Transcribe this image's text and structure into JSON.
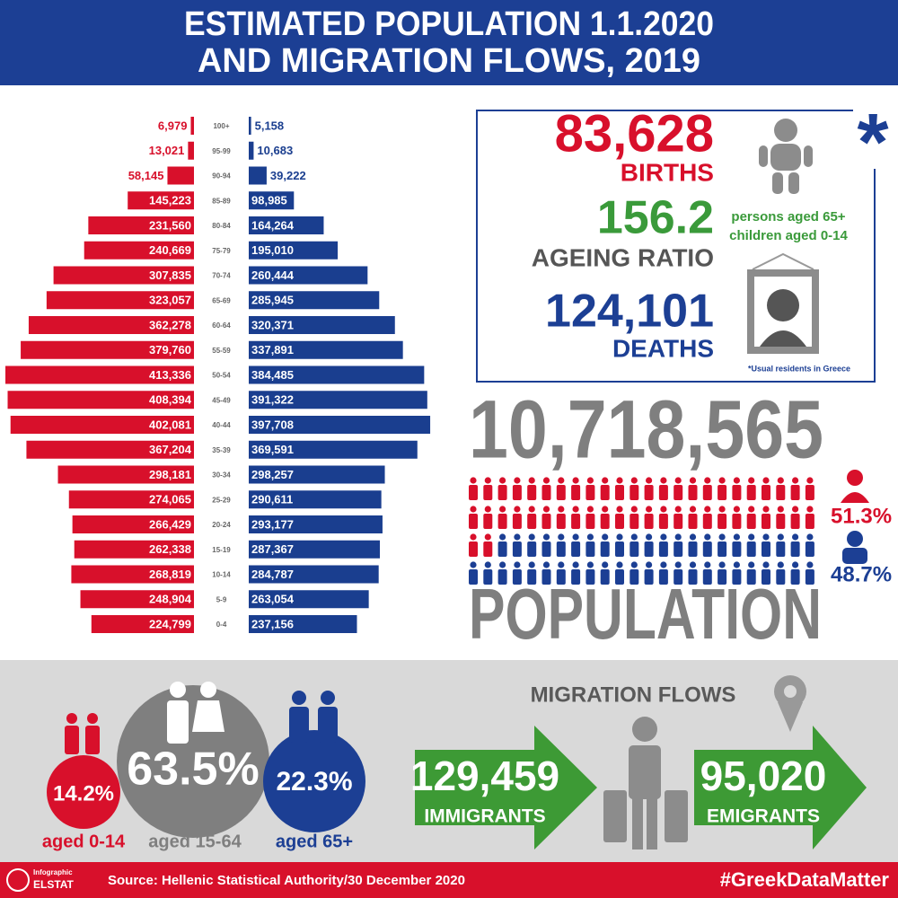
{
  "header": {
    "title_line1": "ESTIMATED POPULATION 1.1.2020",
    "title_line2": "AND MIGRATION FLOWS, 2019"
  },
  "chart_data": {
    "type": "pyramid",
    "categories": [
      "100+",
      "95-99",
      "90-94",
      "85-89",
      "80-84",
      "75-79",
      "70-74",
      "65-69",
      "60-64",
      "55-59",
      "50-54",
      "45-49",
      "40-44",
      "35-39",
      "30-34",
      "25-29",
      "20-24",
      "15-19",
      "10-14",
      "5-9",
      "0-4"
    ],
    "series": [
      {
        "color": "#d8102b",
        "side": "left",
        "values": [
          6979,
          13021,
          58145,
          145223,
          231560,
          240669,
          307835,
          323057,
          362278,
          379760,
          413336,
          408394,
          402081,
          367204,
          298181,
          274065,
          266429,
          262338,
          268819,
          248904,
          224799
        ],
        "value_labels": [
          "6,979",
          "13,021",
          "58,145",
          "145,223",
          "231,560",
          "240,669",
          "307,835",
          "323,057",
          "362,278",
          "379,760",
          "413,336",
          "408,394",
          "402,081",
          "367,204",
          "298,181",
          "274,065",
          "266,429",
          "262,338",
          "268,819",
          "248,904",
          "224,799"
        ]
      },
      {
        "color": "#1a3e8f",
        "side": "right",
        "values": [
          5158,
          10683,
          39222,
          98985,
          164264,
          195010,
          260444,
          285945,
          320371,
          337891,
          384485,
          391322,
          397708,
          369591,
          298257,
          290611,
          293177,
          287367,
          284787,
          263054,
          237156
        ],
        "value_labels": [
          "5,158",
          "10,683",
          "39,222",
          "98,985",
          "164,264",
          "195,010",
          "260,444",
          "285,945",
          "320,371",
          "337,891",
          "384,485",
          "391,322",
          "397,708",
          "369,591",
          "298,257",
          "290,611",
          "293,177",
          "287,367",
          "284,787",
          "263,054",
          "237,156"
        ]
      }
    ]
  },
  "stats": {
    "asterisk": "*",
    "births": "83,628",
    "births_label": "BIRTHS",
    "ageing_ratio": "156.2",
    "ageing_ratio_label": "AGEING RATIO",
    "ratio_numerator": "persons aged 65+",
    "ratio_denominator": "children aged 0-14",
    "deaths": "124,101",
    "deaths_label": "DEATHS",
    "footnote": "*Usual residents in Greece"
  },
  "population": {
    "total": "10,718,565",
    "label": "POPULATION",
    "female_share": "51.3%",
    "male_share": "48.7%"
  },
  "age_groups": [
    {
      "share": "14.2%",
      "label": "aged 0-14"
    },
    {
      "share": "63.5%",
      "label": "aged 15-64"
    },
    {
      "share": "22.3%",
      "label": "aged 65+"
    }
  ],
  "migration": {
    "title": "MIGRATION FLOWS",
    "immigrants": "129,459",
    "immigrants_label": "IMMIGRANTS",
    "emigrants": "95,020",
    "emigrants_label": "EMIGRANTS"
  },
  "footer": {
    "logo_top": "Infographic",
    "logo_bottom": "ELSTAT",
    "source": "Source: Hellenic Statistical Authority/30 December 2020",
    "hashtag": "#GreekDataMatter"
  }
}
